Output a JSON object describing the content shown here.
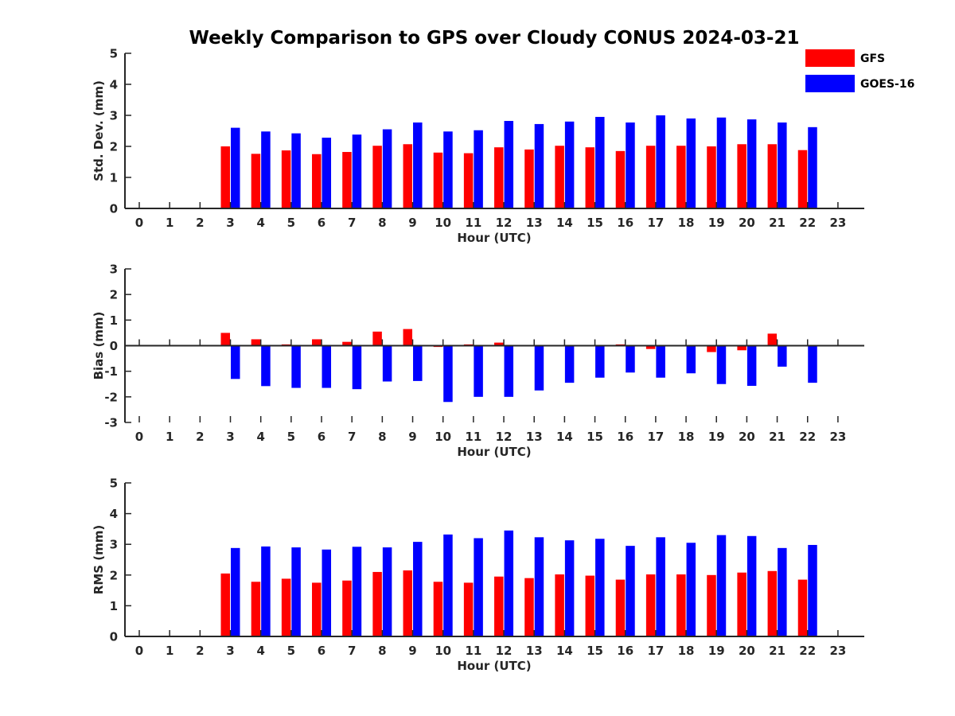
{
  "title": "Weekly Comparison to GPS over Cloudy CONUS 2024-03-21",
  "legend": [
    {
      "name": "GFS",
      "color": "#ff0000"
    },
    {
      "name": "GOES-16",
      "color": "#0000ff"
    }
  ],
  "chart_data": [
    {
      "type": "bar",
      "ylabel": "Std. Dev. (mm)",
      "xlabel": "Hour (UTC)",
      "ylim": [
        0,
        5
      ],
      "yticks": [
        0,
        1,
        2,
        3,
        4,
        5
      ],
      "categories": [
        "0",
        "1",
        "2",
        "3",
        "4",
        "5",
        "6",
        "7",
        "8",
        "9",
        "10",
        "11",
        "12",
        "13",
        "14",
        "15",
        "16",
        "17",
        "18",
        "19",
        "20",
        "21",
        "22",
        "23"
      ],
      "series": [
        {
          "name": "GFS",
          "color": "#ff0000",
          "values": [
            null,
            null,
            null,
            2.0,
            1.76,
            1.87,
            1.75,
            1.82,
            2.02,
            2.07,
            1.8,
            1.78,
            1.97,
            1.9,
            2.02,
            1.97,
            1.85,
            2.02,
            2.02,
            2.0,
            2.07,
            2.07,
            1.88,
            null
          ]
        },
        {
          "name": "GOES-16",
          "color": "#0000ff",
          "values": [
            null,
            null,
            null,
            2.6,
            2.48,
            2.42,
            2.28,
            2.38,
            2.55,
            2.77,
            2.48,
            2.52,
            2.82,
            2.72,
            2.8,
            2.95,
            2.77,
            3.0,
            2.9,
            2.93,
            2.87,
            2.77,
            2.62,
            null
          ]
        }
      ]
    },
    {
      "type": "bar",
      "ylabel": "Bias (mm)",
      "xlabel": "Hour (UTC)",
      "ylim": [
        -3,
        3
      ],
      "yticks": [
        -3,
        -2,
        -1,
        0,
        1,
        2,
        3
      ],
      "categories": [
        "0",
        "1",
        "2",
        "3",
        "4",
        "5",
        "6",
        "7",
        "8",
        "9",
        "10",
        "11",
        "12",
        "13",
        "14",
        "15",
        "16",
        "17",
        "18",
        "19",
        "20",
        "21",
        "22",
        "23"
      ],
      "series": [
        {
          "name": "GFS",
          "color": "#ff0000",
          "values": [
            null,
            null,
            null,
            0.5,
            0.25,
            0.05,
            0.25,
            0.15,
            0.55,
            0.65,
            -0.05,
            0.05,
            0.12,
            -0.02,
            0.0,
            0.0,
            0.05,
            -0.13,
            0.02,
            -0.25,
            -0.18,
            0.47,
            0.02,
            null
          ]
        },
        {
          "name": "GOES-16",
          "color": "#0000ff",
          "values": [
            null,
            null,
            null,
            -1.3,
            -1.58,
            -1.65,
            -1.65,
            -1.7,
            -1.4,
            -1.38,
            -2.2,
            -2.0,
            -2.0,
            -1.75,
            -1.45,
            -1.25,
            -1.05,
            -1.25,
            -1.08,
            -1.5,
            -1.57,
            -0.82,
            -1.45,
            null
          ]
        }
      ]
    },
    {
      "type": "bar",
      "ylabel": "RMS (mm)",
      "xlabel": "Hour (UTC)",
      "ylim": [
        0,
        5
      ],
      "yticks": [
        0,
        1,
        2,
        3,
        4,
        5
      ],
      "categories": [
        "0",
        "1",
        "2",
        "3",
        "4",
        "5",
        "6",
        "7",
        "8",
        "9",
        "10",
        "11",
        "12",
        "13",
        "14",
        "15",
        "16",
        "17",
        "18",
        "19",
        "20",
        "21",
        "22",
        "23"
      ],
      "series": [
        {
          "name": "GFS",
          "color": "#ff0000",
          "values": [
            null,
            null,
            null,
            2.05,
            1.78,
            1.88,
            1.75,
            1.82,
            2.1,
            2.15,
            1.78,
            1.75,
            1.95,
            1.9,
            2.02,
            1.98,
            1.85,
            2.02,
            2.02,
            2.0,
            2.08,
            2.13,
            1.85,
            null
          ]
        },
        {
          "name": "GOES-16",
          "color": "#0000ff",
          "values": [
            null,
            null,
            null,
            2.88,
            2.93,
            2.9,
            2.83,
            2.92,
            2.9,
            3.08,
            3.32,
            3.2,
            3.45,
            3.23,
            3.13,
            3.18,
            2.95,
            3.23,
            3.05,
            3.3,
            3.27,
            2.88,
            2.98,
            null
          ]
        }
      ]
    }
  ]
}
